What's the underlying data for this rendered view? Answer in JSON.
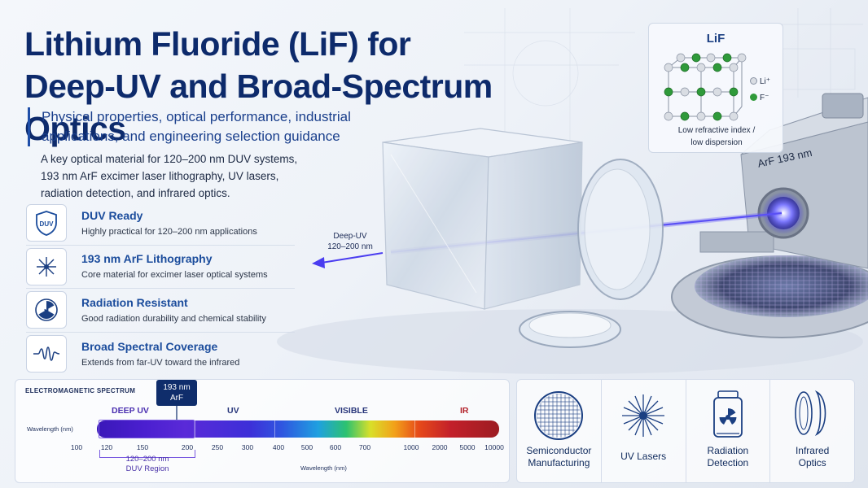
{
  "title_line1": "Lithium Fluoride (LiF) for",
  "title_line2": "Deep-UV and Broad-Spectrum Optics",
  "subtitle": "Physical properties, optical performance, industrial applications, and engineering selection guidance",
  "intro": "A key optical material for 120–200 nm DUV systems, 193 nm ArF excimer laser lithography, UV lasers, radiation detection, and infrared optics.",
  "features": [
    {
      "icon": "duv-shield-icon",
      "icon_text": "DUV",
      "title": "DUV Ready",
      "desc": "Highly practical for 120–200 nm applications"
    },
    {
      "icon": "laser-burst-icon",
      "title": "193 nm ArF Lithography",
      "desc": "Core material for excimer laser optical systems"
    },
    {
      "icon": "radiation-icon",
      "title": "Radiation Resistant",
      "desc": "Good radiation durability and chemical stability"
    },
    {
      "icon": "wave-icon",
      "title": "Broad Spectral Coverage",
      "desc": "Extends from far-UV toward the infrared"
    }
  ],
  "hero": {
    "beam_label": "Deep-UV\n120–200 nm",
    "arf_device_label": "ArF 193 nm"
  },
  "lif_card": {
    "title": "LiF",
    "legend_li": "Li⁺",
    "legend_f": "F⁻",
    "desc": "Low refractive index  /\nlow dispersion",
    "li_color": "#d9dde3",
    "f_color": "#2f9a3a"
  },
  "spectrum": {
    "title": "ELECTROMAGNETIC SPECTRUM",
    "arf_callout": "193 nm\nArF",
    "bands": [
      {
        "label": "DEEP UV",
        "color": "#4a2fb0"
      },
      {
        "label": "UV",
        "color": "#27357a"
      },
      {
        "label": "VISIBLE",
        "color": "#27357a"
      },
      {
        "label": "IR",
        "color": "#b21f28"
      }
    ],
    "wavelength_label_left": "Wavelength (nm)",
    "ticks": [
      "100",
      "120",
      "150",
      "200",
      "250",
      "300",
      "400",
      "500",
      "600",
      "700",
      "1000",
      "2000",
      "5000",
      "10000"
    ],
    "duv_range": "120–200 nm",
    "duv_region": "DUV Region",
    "wavelength_label_bottom": "Wavelength (nm)"
  },
  "applications": [
    {
      "icon": "wafer-icon",
      "label": "Semiconductor\nManufacturing"
    },
    {
      "icon": "laser-star-icon",
      "label": "UV Lasers"
    },
    {
      "icon": "radiation-detector-icon",
      "label": "Radiation\nDetection"
    },
    {
      "icon": "lens-icon",
      "label": "Infrared\nOptics"
    }
  ],
  "colors": {
    "title": "#0d2a6b",
    "accent": "#1b4c9c",
    "beam": "#4a3df0"
  }
}
